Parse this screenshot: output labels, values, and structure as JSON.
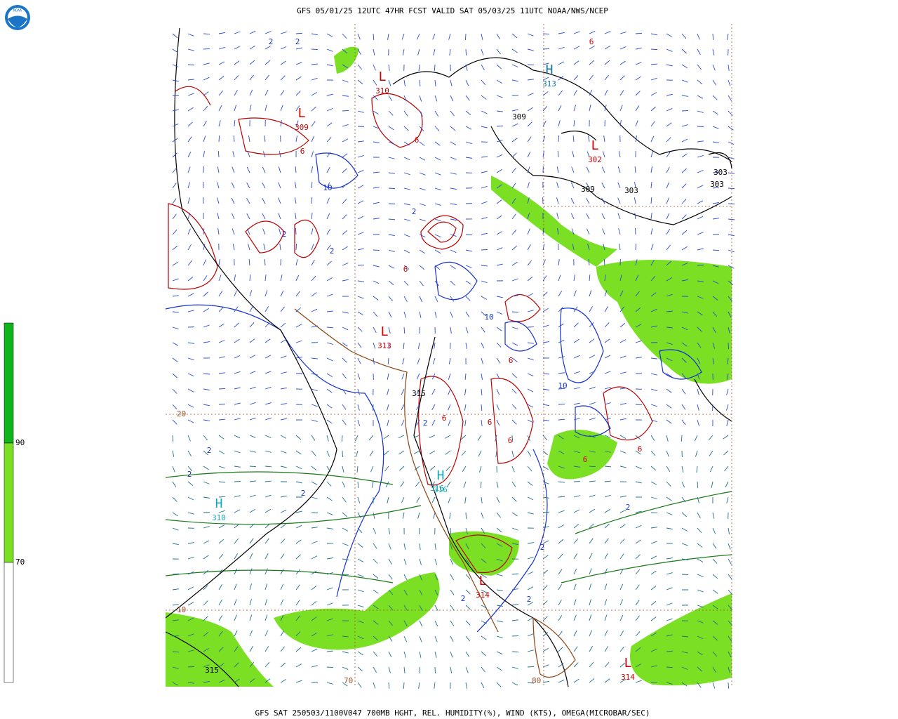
{
  "header": {
    "title": "GFS 05/01/25 12UTC 47HR FCST VALID SAT 05/03/25 11UTC NOAA/NWS/NCEP",
    "logo": "NOAA"
  },
  "footer": {
    "caption": "GFS SAT 250503/1100V047 700MB HGHT, REL. HUMIDITY(%), WIND (KTS), OMEGA(MICROBAR/SEC)"
  },
  "colorbar": {
    "labels": [
      90,
      70
    ]
  },
  "grid_labels": {
    "latitudes": [
      20,
      10
    ],
    "longitudes": [
      70,
      80
    ]
  },
  "centers": [
    {
      "symbol": "L",
      "label": 310
    },
    {
      "symbol": "L",
      "label": 309
    },
    {
      "symbol": "L",
      "label": 302
    },
    {
      "symbol": "H",
      "label": 313
    },
    {
      "symbol": "L",
      "label": 313
    },
    {
      "symbol": "H",
      "label": 316
    },
    {
      "symbol": "H",
      "label": 310
    },
    {
      "symbol": "L",
      "label": 314
    },
    {
      "symbol": "L",
      "label": 314
    }
  ],
  "height_labels": [
    309,
    303,
    303,
    309,
    303,
    315,
    315,
    316
  ],
  "contour_labels": [
    2,
    2,
    6,
    6,
    6,
    10,
    2,
    2,
    6,
    2,
    10,
    6,
    6,
    2,
    2,
    2,
    6,
    2,
    10,
    6,
    2,
    2,
    6,
    2,
    2,
    6
  ]
}
